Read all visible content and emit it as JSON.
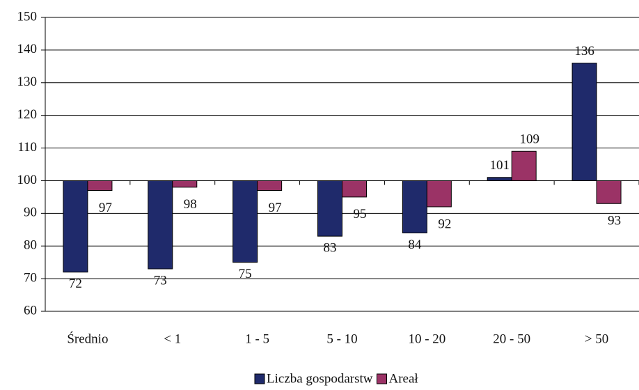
{
  "chart_data": {
    "type": "bar",
    "categories": [
      "Średnio",
      "< 1",
      "1 - 5",
      "5 - 10",
      "10 - 20",
      "20 - 50",
      "> 50"
    ],
    "series": [
      {
        "name": "Liczba gospodarstw",
        "color": "#1f2a6b",
        "values": [
          72,
          73,
          75,
          83,
          84,
          101,
          136
        ]
      },
      {
        "name": "Areał",
        "color": "#9b3366",
        "values": [
          97,
          98,
          97,
          95,
          92,
          109,
          93
        ]
      }
    ],
    "ylim": [
      60,
      150
    ],
    "yticks": [
      60,
      70,
      80,
      90,
      100,
      110,
      120,
      130,
      140,
      150
    ],
    "baseline": 100,
    "grid": true,
    "legend": "bottom"
  }
}
